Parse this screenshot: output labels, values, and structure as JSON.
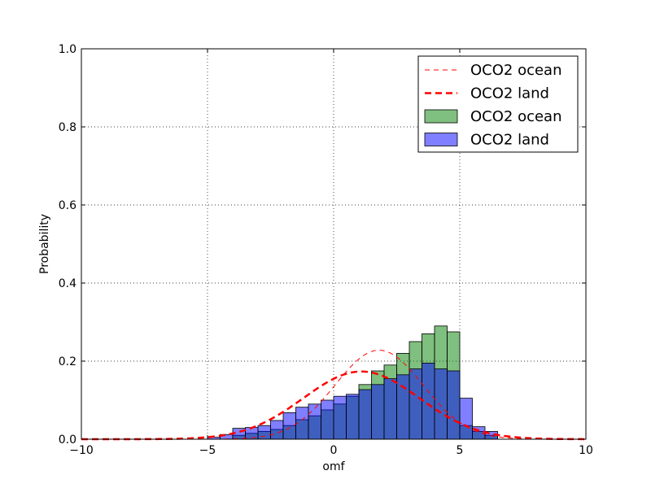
{
  "chart_data": {
    "type": "bar",
    "xlabel": "omf",
    "ylabel": "Probability",
    "xlim": [
      -10,
      10
    ],
    "ylim": [
      0,
      1.0
    ],
    "grid": true,
    "legend_position": "top-right",
    "x_ticks": [
      "−10",
      "−5",
      "0",
      "5",
      "10"
    ],
    "y_ticks": [
      "0.0",
      "0.2",
      "0.4",
      "0.6",
      "0.8",
      "1.0"
    ],
    "bin_width": 0.5,
    "histograms": [
      {
        "name": "OCO2 ocean",
        "color": "#008000",
        "bin_starts": [
          -4.0,
          -3.5,
          -3.0,
          -2.5,
          -2.0,
          -1.5,
          -1.0,
          -0.5,
          0.0,
          0.5,
          1.0,
          1.5,
          2.0,
          2.5,
          3.0,
          3.5,
          4.0,
          4.5,
          5.0,
          5.5,
          6.0
        ],
        "values": [
          0.01,
          0.015,
          0.02,
          0.025,
          0.035,
          0.05,
          0.06,
          0.075,
          0.09,
          0.11,
          0.14,
          0.175,
          0.19,
          0.22,
          0.25,
          0.27,
          0.29,
          0.275,
          0.035,
          0.02,
          0.01
        ]
      },
      {
        "name": "OCO2 land",
        "color": "#0000ff",
        "bin_starts": [
          -5.0,
          -4.5,
          -4.0,
          -3.5,
          -3.0,
          -2.5,
          -2.0,
          -1.5,
          -1.0,
          -0.5,
          0.0,
          0.5,
          1.0,
          1.5,
          2.0,
          2.5,
          3.0,
          3.5,
          4.0,
          4.5,
          5.0,
          5.5,
          6.0
        ],
        "values": [
          0.005,
          0.012,
          0.028,
          0.03,
          0.035,
          0.048,
          0.068,
          0.082,
          0.09,
          0.1,
          0.11,
          0.115,
          0.127,
          0.14,
          0.155,
          0.165,
          0.18,
          0.195,
          0.18,
          0.175,
          0.105,
          0.032,
          0.02
        ]
      }
    ],
    "curves": [
      {
        "name": "OCO2 ocean",
        "style": "dashed-thin",
        "color": "#ff0000",
        "mean": 1.8,
        "sd": 1.75
      },
      {
        "name": "OCO2 land",
        "style": "dashed-thick",
        "color": "#ff0000",
        "mean": 1.1,
        "sd": 2.3
      }
    ],
    "legend": [
      {
        "label": "OCO2 ocean",
        "kind": "line-thin",
        "color": "#ff0000"
      },
      {
        "label": "OCO2 land",
        "kind": "line-thick",
        "color": "#ff0000"
      },
      {
        "label": "OCO2 ocean",
        "kind": "patch",
        "color": "#008000"
      },
      {
        "label": "OCO2 land",
        "kind": "patch",
        "color": "#0000ff"
      }
    ]
  }
}
